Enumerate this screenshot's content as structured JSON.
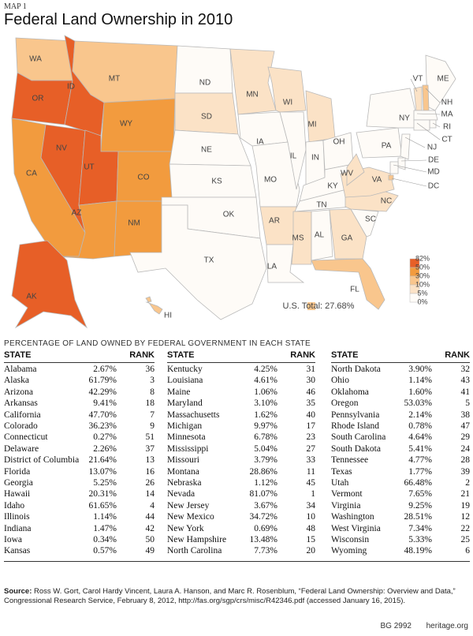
{
  "header": {
    "kicker": "MAP 1",
    "title": "Federal Land Ownership in 2010"
  },
  "map": {
    "states": [
      {
        "label": "WA",
        "color": "#f9c68d"
      },
      {
        "label": "OR",
        "color": "#e75f27"
      },
      {
        "label": "CA",
        "color": "#f29b3e"
      },
      {
        "label": "NV",
        "color": "#e75f27"
      },
      {
        "label": "ID",
        "color": "#e75f27"
      },
      {
        "label": "MT",
        "color": "#f9c68d"
      },
      {
        "label": "WY",
        "color": "#f29b3e"
      },
      {
        "label": "UT",
        "color": "#e75f27"
      },
      {
        "label": "CO",
        "color": "#f29b3e"
      },
      {
        "label": "AZ",
        "color": "#f29b3e"
      },
      {
        "label": "NM",
        "color": "#f29b3e"
      },
      {
        "label": "ND",
        "color": "#fefbf7"
      },
      {
        "label": "SD",
        "color": "#fbe2c6"
      },
      {
        "label": "NE",
        "color": "#fefbf7"
      },
      {
        "label": "KS",
        "color": "#fefbf7"
      },
      {
        "label": "OK",
        "color": "#fefbf7"
      },
      {
        "label": "TX",
        "color": "#fefbf7"
      },
      {
        "label": "MN",
        "color": "#fbe2c6"
      },
      {
        "label": "IA",
        "color": "#fefbf7"
      },
      {
        "label": "MO",
        "color": "#fefbf7"
      },
      {
        "label": "AR",
        "color": "#fbe2c6"
      },
      {
        "label": "LA",
        "color": "#fefbf7"
      },
      {
        "label": "WI",
        "color": "#fbe2c6"
      },
      {
        "label": "IL",
        "color": "#fefbf7"
      },
      {
        "label": "MI",
        "color": "#fbe2c6"
      },
      {
        "label": "IN",
        "color": "#fefbf7"
      },
      {
        "label": "OH",
        "color": "#fefbf7"
      },
      {
        "label": "KY",
        "color": "#fefbf7"
      },
      {
        "label": "TN",
        "color": "#fefbf7"
      },
      {
        "label": "MS",
        "color": "#fbe2c6"
      },
      {
        "label": "AL",
        "color": "#fefbf7"
      },
      {
        "label": "GA",
        "color": "#fbe2c6"
      },
      {
        "label": "FL",
        "color": "#f9c68d"
      },
      {
        "label": "SC",
        "color": "#fefbf7"
      },
      {
        "label": "NC",
        "color": "#fbe2c6"
      },
      {
        "label": "VA",
        "color": "#fbe2c6"
      },
      {
        "label": "WV",
        "color": "#fbe2c6"
      },
      {
        "label": "PA",
        "color": "#fefbf7"
      },
      {
        "label": "NY",
        "color": "#fefbf7"
      },
      {
        "label": "ME",
        "color": "#fefbf7"
      },
      {
        "label": "VT",
        "color": "#fbe2c6"
      },
      {
        "label": "NH",
        "color": "#f9c68d"
      },
      {
        "label": "MA",
        "color": "#fefbf7"
      },
      {
        "label": "RI",
        "color": "#fefbf7"
      },
      {
        "label": "CT",
        "color": "#fefbf7"
      },
      {
        "label": "NJ",
        "color": "#fefbf7"
      },
      {
        "label": "DE",
        "color": "#fefbf7"
      },
      {
        "label": "MD",
        "color": "#fefbf7"
      },
      {
        "label": "DC",
        "color": "#f9c68d"
      },
      {
        "label": "AK",
        "color": "#e75f27"
      },
      {
        "label": "HI",
        "color": "#f9c68d"
      }
    ],
    "legend": {
      "colors": [
        "#e75f27",
        "#f29b3e",
        "#f9c68d",
        "#fbe2c6",
        "#fefbf7"
      ],
      "labels": [
        "82%",
        "50%",
        "30%",
        "10%",
        "5%",
        "0%"
      ]
    },
    "total": {
      "label": "U.S. Total: 27.68%",
      "color": "#f9c68d"
    }
  },
  "table": {
    "title": "PERCENTAGE OF LAND OWNED BY FEDERAL GOVERNMENT IN EACH STATE",
    "columns": [
      "STATE",
      "RANK"
    ],
    "rows": [
      [
        "Alabama",
        "2.67%",
        36
      ],
      [
        "Alaska",
        "61.79%",
        3
      ],
      [
        "Arizona",
        "42.29%",
        8
      ],
      [
        "Arkansas",
        "9.41%",
        18
      ],
      [
        "California",
        "47.70%",
        7
      ],
      [
        "Colorado",
        "36.23%",
        9
      ],
      [
        "Connecticut",
        "0.27%",
        51
      ],
      [
        "Delaware",
        "2.26%",
        37
      ],
      [
        "District of Columbia",
        "21.64%",
        13
      ],
      [
        "Florida",
        "13.07%",
        16
      ],
      [
        "Georgia",
        "5.25%",
        26
      ],
      [
        "Hawaii",
        "20.31%",
        14
      ],
      [
        "Idaho",
        "61.65%",
        4
      ],
      [
        "Illinois",
        "1.14%",
        44
      ],
      [
        "Indiana",
        "1.47%",
        42
      ],
      [
        "Iowa",
        "0.34%",
        50
      ],
      [
        "Kansas",
        "0.57%",
        49
      ],
      [
        "Kentucky",
        "4.25%",
        31
      ],
      [
        "Louisiana",
        "4.61%",
        30
      ],
      [
        "Maine",
        "1.06%",
        46
      ],
      [
        "Maryland",
        "3.10%",
        35
      ],
      [
        "Massachusetts",
        "1.62%",
        40
      ],
      [
        "Michigan",
        "9.97%",
        17
      ],
      [
        "Minnesota",
        "6.78%",
        23
      ],
      [
        "Mississippi",
        "5.04%",
        27
      ],
      [
        "Missouri",
        "3.79%",
        33
      ],
      [
        "Montana",
        "28.86%",
        11
      ],
      [
        "Nebraska",
        "1.12%",
        45
      ],
      [
        "Nevada",
        "81.07%",
        1
      ],
      [
        "New Jersey",
        "3.67%",
        34
      ],
      [
        "New Mexico",
        "34.72%",
        10
      ],
      [
        "New York",
        "0.69%",
        48
      ],
      [
        "New Hampshire",
        "13.48%",
        15
      ],
      [
        "North Carolina",
        "7.73%",
        20
      ],
      [
        "North Dakota",
        "3.90%",
        32
      ],
      [
        "Ohio",
        "1.14%",
        43
      ],
      [
        "Oklahoma",
        "1.60%",
        41
      ],
      [
        "Oregon",
        "53.03%",
        5
      ],
      [
        "Pennsylvania",
        "2.14%",
        38
      ],
      [
        "Rhode Island",
        "0.78%",
        47
      ],
      [
        "South Carolina",
        "4.64%",
        29
      ],
      [
        "South Dakota",
        "5.41%",
        24
      ],
      [
        "Tennessee",
        "4.77%",
        28
      ],
      [
        "Texas",
        "1.77%",
        39
      ],
      [
        "Utah",
        "66.48%",
        2
      ],
      [
        "Vermont",
        "7.65%",
        21
      ],
      [
        "Virginia",
        "9.25%",
        19
      ],
      [
        "Washington",
        "28.51%",
        12
      ],
      [
        "West Virginia",
        "7.34%",
        22
      ],
      [
        "Wisconsin",
        "5.33%",
        25
      ],
      [
        "Wyoming",
        "48.19%",
        6
      ]
    ]
  },
  "footer": {
    "source_label": "Source:",
    "source": "Ross W. Gort, Carol Hardy Vincent, Laura A. Hanson, and Marc R. Rosenblum, “Federal Land Ownership: Overview and Data,” Congressional Research Service, February 8, 2012, http://fas.org/sgp/crs/misc/R42346.pdf (accessed January 16, 2015).",
    "code": "BG 2992",
    "site": "heritage.org"
  }
}
